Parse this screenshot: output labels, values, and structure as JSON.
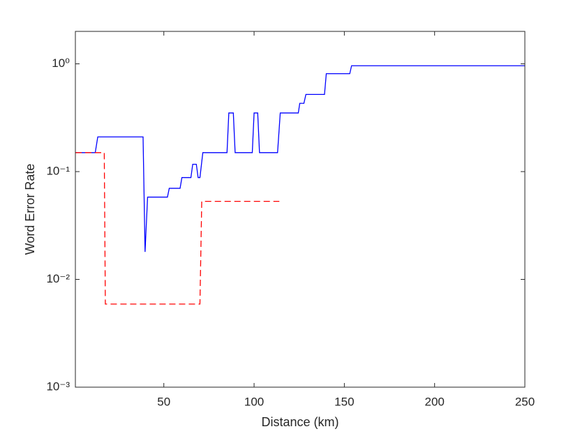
{
  "chart_data": {
    "type": "line",
    "x_label": "Distance (km)",
    "y_label": "Word Error Rate",
    "log_y": true,
    "xlim": [
      1,
      250
    ],
    "ylim": [
      0.001,
      2
    ],
    "xticks": [
      50,
      100,
      150,
      200,
      250
    ],
    "yticks": [
      {
        "value": 0.001,
        "label": "10⁻³"
      },
      {
        "value": 0.01,
        "label": "10⁻²"
      },
      {
        "value": 0.1,
        "label": "10⁻¹"
      },
      {
        "value": 1,
        "label": "10⁰"
      }
    ],
    "series": [
      {
        "color": "#0000ff",
        "dash": false,
        "x": [
          1,
          12,
          13.4,
          38.5,
          39.6,
          41,
          52,
          53,
          59,
          60,
          65,
          66,
          68,
          69,
          70,
          71.6,
          85,
          86,
          88.5,
          89.5,
          99,
          100,
          102,
          103,
          113,
          114.5,
          124.5,
          125.3,
          127.6,
          128.7,
          139,
          140,
          153,
          154,
          250
        ],
        "values": [
          0.15,
          0.15,
          0.21,
          0.21,
          0.018,
          0.058,
          0.058,
          0.07,
          0.07,
          0.088,
          0.088,
          0.117,
          0.117,
          0.088,
          0.088,
          0.15,
          0.15,
          0.35,
          0.35,
          0.15,
          0.15,
          0.35,
          0.35,
          0.15,
          0.15,
          0.35,
          0.35,
          0.43,
          0.43,
          0.52,
          0.52,
          0.81,
          0.81,
          0.96,
          0.96
        ]
      },
      {
        "color": "#ff0000",
        "dash": true,
        "x": [
          1,
          17,
          17.6,
          70,
          71,
          114
        ],
        "values": [
          0.15,
          0.15,
          0.0059,
          0.0059,
          0.053,
          0.053
        ]
      }
    ]
  }
}
